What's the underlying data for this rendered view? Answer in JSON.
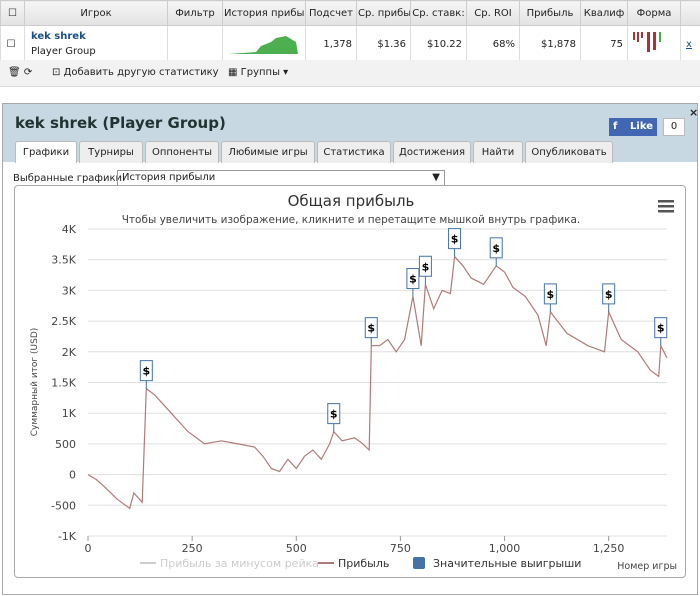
{
  "table": {
    "headers": [
      "Игрок",
      "Фильтр",
      "История прибы",
      "Подсчет",
      "Ср. прибы",
      "Ср. ставк:",
      "Ср. ROI",
      "Прибыль",
      "Квалиф",
      "Форма"
    ],
    "row": {
      "player": "kek shrek",
      "group": "Player Group",
      "cells": [
        "1,378",
        "$1.36",
        "$10.22",
        "68%",
        "$1,878",
        "75"
      ],
      "remove": "x"
    }
  },
  "toolbar": {
    "add": "Добавить другую статистику",
    "groups": "Группы"
  },
  "panel": {
    "title": "kek shrek (Player Group)",
    "like": "Like",
    "like_count": "0",
    "tabs": [
      "Графики",
      "Турниры",
      "Оппоненты",
      "Любимые игры",
      "Статистика",
      "Достижения",
      "Найти",
      "Опубликовать"
    ],
    "select_label": "Выбранные графики:",
    "select_value": "История прибыли"
  },
  "chart_data": {
    "type": "line",
    "title": "Общая прибыль",
    "subtitle": "Чтобы увеличить изображение, кликните и перетащите мышкой внутрь графика.",
    "y_label": "Суммарный итог (USD)",
    "x_label": "Номер игры",
    "xlim": [
      0,
      1390
    ],
    "ylim": [
      -1000,
      4000
    ],
    "xticks": [
      0,
      250,
      500,
      750,
      {
        "value": 1000,
        "label": "1,000"
      },
      {
        "value": 1250,
        "label": "1,250"
      }
    ],
    "yticks": [
      {
        "value": -1000,
        "label": "-1K"
      },
      -500,
      0,
      500,
      {
        "value": 1000,
        "label": "1K"
      },
      {
        "value": 1500,
        "label": "1.5K"
      },
      {
        "value": 2000,
        "label": "2K"
      },
      {
        "value": 2500,
        "label": "2.5K"
      },
      {
        "value": 3000,
        "label": "3K"
      },
      {
        "value": 3500,
        "label": "3.5K"
      },
      {
        "value": 4000,
        "label": "4K"
      }
    ],
    "grid": true,
    "series": [
      {
        "name": "Прибыль за минусом рейка",
        "color": "#cccccc",
        "visible": false
      },
      {
        "name": "Прибыль",
        "color": "#b07a7a",
        "visible": true,
        "x": [
          0,
          20,
          40,
          70,
          100,
          110,
          130,
          140,
          160,
          200,
          240,
          280,
          320,
          360,
          400,
          420,
          440,
          460,
          480,
          500,
          520,
          540,
          560,
          580,
          590,
          610,
          640,
          660,
          675,
          680,
          700,
          720,
          740,
          760,
          780,
          790,
          800,
          810,
          830,
          850,
          870,
          880,
          900,
          920,
          950,
          980,
          1000,
          1020,
          1050,
          1080,
          1100,
          1110,
          1150,
          1200,
          1240,
          1250,
          1280,
          1320,
          1350,
          1370,
          1375,
          1390
        ],
        "values": [
          0,
          -80,
          -200,
          -400,
          -550,
          -300,
          -450,
          1400,
          1300,
          1000,
          700,
          500,
          550,
          500,
          450,
          300,
          100,
          50,
          250,
          100,
          300,
          400,
          250,
          500,
          700,
          550,
          600,
          500,
          400,
          2100,
          2100,
          2200,
          2000,
          2200,
          2900,
          2500,
          2100,
          3100,
          2700,
          3000,
          2950,
          3550,
          3400,
          3200,
          3100,
          3400,
          3300,
          3050,
          2900,
          2600,
          2100,
          2650,
          2300,
          2100,
          2000,
          2650,
          2200,
          2000,
          1700,
          1600,
          2100,
          1900
        ]
      },
      {
        "name": "Значительные выигрыши",
        "color": "#4572a7",
        "visible": true,
        "marker_label": "$",
        "x": [
          140,
          590,
          680,
          780,
          810,
          880,
          980,
          1110,
          1250,
          1375
        ],
        "values": [
          1400,
          700,
          2100,
          2900,
          3100,
          3550,
          3400,
          2650,
          2650,
          2100
        ]
      }
    ]
  }
}
